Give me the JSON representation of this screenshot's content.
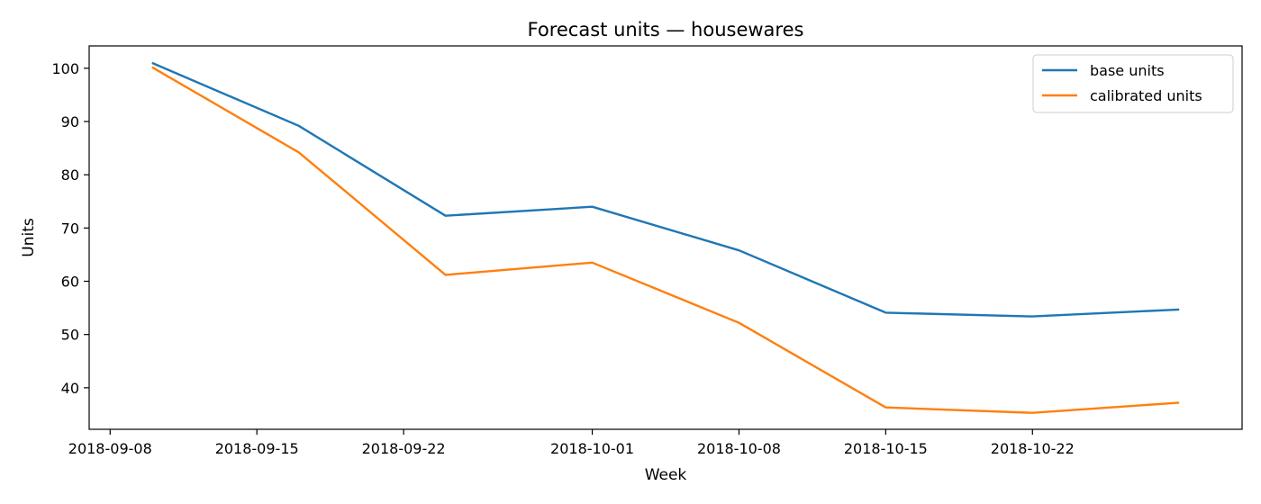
{
  "chart_data": {
    "type": "line",
    "title": "Forecast units — housewares",
    "xlabel": "Week",
    "ylabel": "Units",
    "x": [
      "2018-09-10",
      "2018-09-17",
      "2018-09-24",
      "2018-10-01",
      "2018-10-08",
      "2018-10-15",
      "2018-10-22",
      "2018-10-29"
    ],
    "series": [
      {
        "name": "base units",
        "color": "#1f77b4",
        "values": [
          101.0,
          89.2,
          72.3,
          74.0,
          65.8,
          54.1,
          53.4,
          54.7
        ]
      },
      {
        "name": "calibrated units",
        "color": "#ff7f0e",
        "values": [
          100.2,
          84.2,
          61.2,
          63.5,
          52.2,
          36.3,
          35.3,
          37.2
        ]
      }
    ],
    "xlim": [
      "2018-09-07",
      "2018-11-01"
    ],
    "ylim": [
      32.2,
      104.2
    ],
    "xticks": [
      "2018-09-08",
      "2018-09-15",
      "2018-09-22",
      "2018-10-01",
      "2018-10-08",
      "2018-10-15",
      "2018-10-22"
    ],
    "yticks": [
      40,
      50,
      60,
      70,
      80,
      90,
      100
    ],
    "grid": false,
    "legend_position": "top-right"
  }
}
